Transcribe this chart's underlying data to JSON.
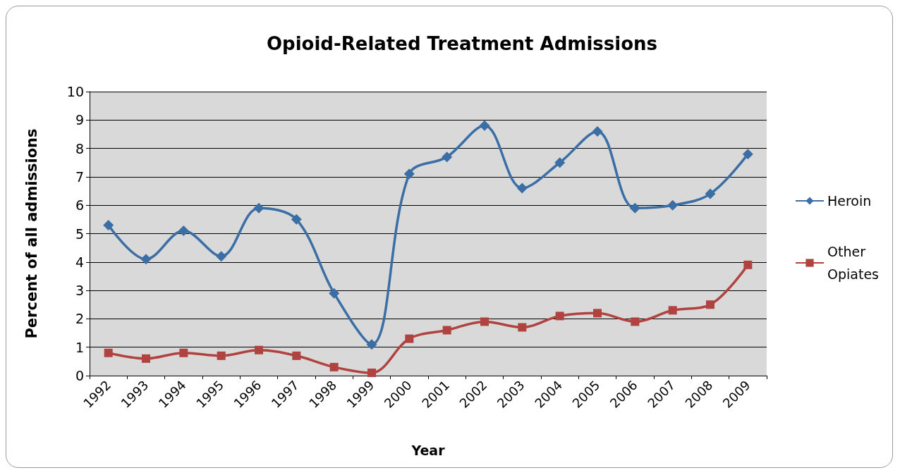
{
  "chart_data": {
    "type": "line",
    "title": "Opioid-Related Treatment Admissions",
    "xlabel": "Year",
    "ylabel": "Percent of all admissions",
    "categories": [
      "1992",
      "1993",
      "1994",
      "1995",
      "1996",
      "1997",
      "1998",
      "1999",
      "2000",
      "2001",
      "2002",
      "2003",
      "2004",
      "2005",
      "2006",
      "2007",
      "2008",
      "2009"
    ],
    "series": [
      {
        "name": "Heroin",
        "color": "#3a6ea5",
        "marker": "diamond",
        "values": [
          5.3,
          4.1,
          5.1,
          4.2,
          5.9,
          5.5,
          2.9,
          1.1,
          7.1,
          7.7,
          8.8,
          6.6,
          7.5,
          8.6,
          5.9,
          6.0,
          6.4,
          7.8
        ]
      },
      {
        "name": "Other Opiates",
        "color": "#b0433f",
        "marker": "square",
        "values": [
          0.8,
          0.6,
          0.8,
          0.7,
          0.9,
          0.7,
          0.3,
          0.1,
          1.3,
          1.6,
          1.9,
          1.7,
          2.1,
          2.2,
          1.9,
          2.3,
          2.5,
          3.9
        ]
      }
    ],
    "ylim": [
      0,
      10
    ],
    "yticks": [
      0,
      1,
      2,
      3,
      4,
      5,
      6,
      7,
      8,
      9,
      10
    ],
    "grid": "y",
    "legend": "right"
  }
}
